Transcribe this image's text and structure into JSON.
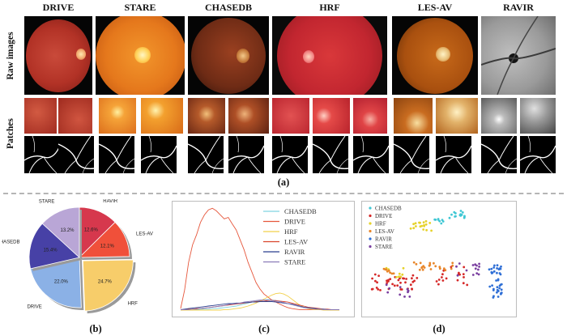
{
  "column_headers": [
    "DRIVE",
    "STARE",
    "CHASEDB",
    "HRF",
    "LES-AV",
    "RAVIR"
  ],
  "row_labels": {
    "raw": "Raw images",
    "patches": "Patches"
  },
  "panel_labels": {
    "a": "(a)",
    "b": "(b)",
    "c": "(c)",
    "d": "(d)"
  },
  "chart_data": [
    {
      "type": "pie",
      "panel": "b",
      "slices": [
        {
          "label": "RAVIR",
          "value": 12.6,
          "text": "12.6%",
          "color": "#d6384d"
        },
        {
          "label": "LES-AV",
          "value": 12.1,
          "text": "12.1%",
          "color": "#f0503a"
        },
        {
          "label": "HRF",
          "value": 24.7,
          "text": "24.7%",
          "color": "#f7cd6a"
        },
        {
          "label": "DRIVE",
          "value": 22.0,
          "text": "22.0%",
          "color": "#8bb1e6"
        },
        {
          "label": "CHASEDB",
          "value": 15.4,
          "text": "15.4%",
          "color": "#4741a6"
        },
        {
          "label": "STARE",
          "value": 13.2,
          "text": "13.2%",
          "color": "#b9a6d6"
        }
      ]
    },
    {
      "type": "line",
      "panel": "c",
      "grid": false,
      "legend": "top-right",
      "x": [
        0,
        2,
        4,
        6,
        8,
        10,
        12,
        14,
        16,
        18,
        20,
        22,
        24,
        26,
        28,
        30,
        32,
        34,
        36,
        38,
        40,
        42,
        44,
        46,
        48,
        50,
        52,
        54,
        56,
        58,
        60,
        62,
        64,
        66,
        68,
        70,
        72,
        74,
        76,
        78,
        80
      ],
      "series": [
        {
          "name": "CHASEDB",
          "color": "#7fd3e0",
          "values": [
            1,
            1,
            1,
            1,
            1,
            2,
            2,
            2,
            3,
            3,
            4,
            5,
            6,
            7,
            8,
            10,
            12,
            14,
            16,
            18,
            19,
            20,
            21,
            20,
            19,
            17,
            15,
            13,
            11,
            9,
            7,
            5,
            4,
            3,
            2,
            2,
            1,
            1,
            1,
            1,
            1
          ]
        },
        {
          "name": "DRIVE",
          "color": "#e6573c",
          "values": [
            3,
            40,
            95,
            130,
            150,
            175,
            190,
            200,
            203,
            198,
            190,
            182,
            185,
            172,
            160,
            140,
            120,
            95,
            75,
            55,
            42,
            32,
            26,
            20,
            16,
            12,
            8,
            5,
            3,
            2,
            1,
            1,
            1,
            1,
            1,
            1,
            1,
            1,
            1,
            1,
            1
          ]
        },
        {
          "name": "HRF",
          "color": "#f2d04b",
          "values": [
            0,
            0,
            0,
            0,
            0,
            0,
            0,
            0,
            0,
            0,
            0,
            1,
            1,
            2,
            3,
            4,
            6,
            8,
            11,
            14,
            18,
            22,
            26,
            30,
            33,
            34,
            32,
            28,
            22,
            16,
            10,
            6,
            3,
            2,
            1,
            1,
            0,
            0,
            0,
            0,
            0
          ]
        },
        {
          "name": "LES-AV",
          "color": "#d9452c",
          "values": [
            1,
            1,
            2,
            2,
            3,
            3,
            4,
            5,
            6,
            7,
            8,
            9,
            10,
            11,
            12,
            13,
            14,
            15,
            16,
            17,
            18,
            18,
            19,
            19,
            19,
            18,
            17,
            16,
            14,
            12,
            10,
            8,
            6,
            5,
            4,
            3,
            2,
            2,
            1,
            1,
            1
          ]
        },
        {
          "name": "RAVIR",
          "color": "#2b3f8f",
          "values": [
            1,
            2,
            3,
            4,
            5,
            6,
            7,
            8,
            9,
            10,
            11,
            12,
            13,
            13,
            14,
            14,
            15,
            15,
            16,
            16,
            17,
            17,
            17,
            17,
            16,
            15,
            14,
            13,
            12,
            10,
            8,
            6,
            5,
            4,
            3,
            2,
            2,
            1,
            1,
            1,
            1
          ]
        },
        {
          "name": "STARE",
          "color": "#8a7ab8",
          "values": [
            1,
            1,
            1,
            2,
            2,
            3,
            4,
            5,
            6,
            7,
            8,
            9,
            11,
            12,
            13,
            14,
            16,
            17,
            18,
            19,
            20,
            20,
            20,
            19,
            18,
            17,
            15,
            13,
            11,
            9,
            7,
            5,
            4,
            3,
            2,
            2,
            1,
            1,
            1,
            1,
            1
          ]
        }
      ]
    },
    {
      "type": "scatter",
      "panel": "d",
      "legend": "top-left",
      "series": [
        {
          "name": "CHASEDB",
          "color": "#3fc7d4"
        },
        {
          "name": "DRIVE",
          "color": "#d62828"
        },
        {
          "name": "HRF",
          "color": "#e6d22a"
        },
        {
          "name": "LES-AV",
          "color": "#e8862a"
        },
        {
          "name": "RAVIR",
          "color": "#2f6fd6"
        },
        {
          "name": "STARE",
          "color": "#7a3fa0"
        }
      ]
    }
  ]
}
